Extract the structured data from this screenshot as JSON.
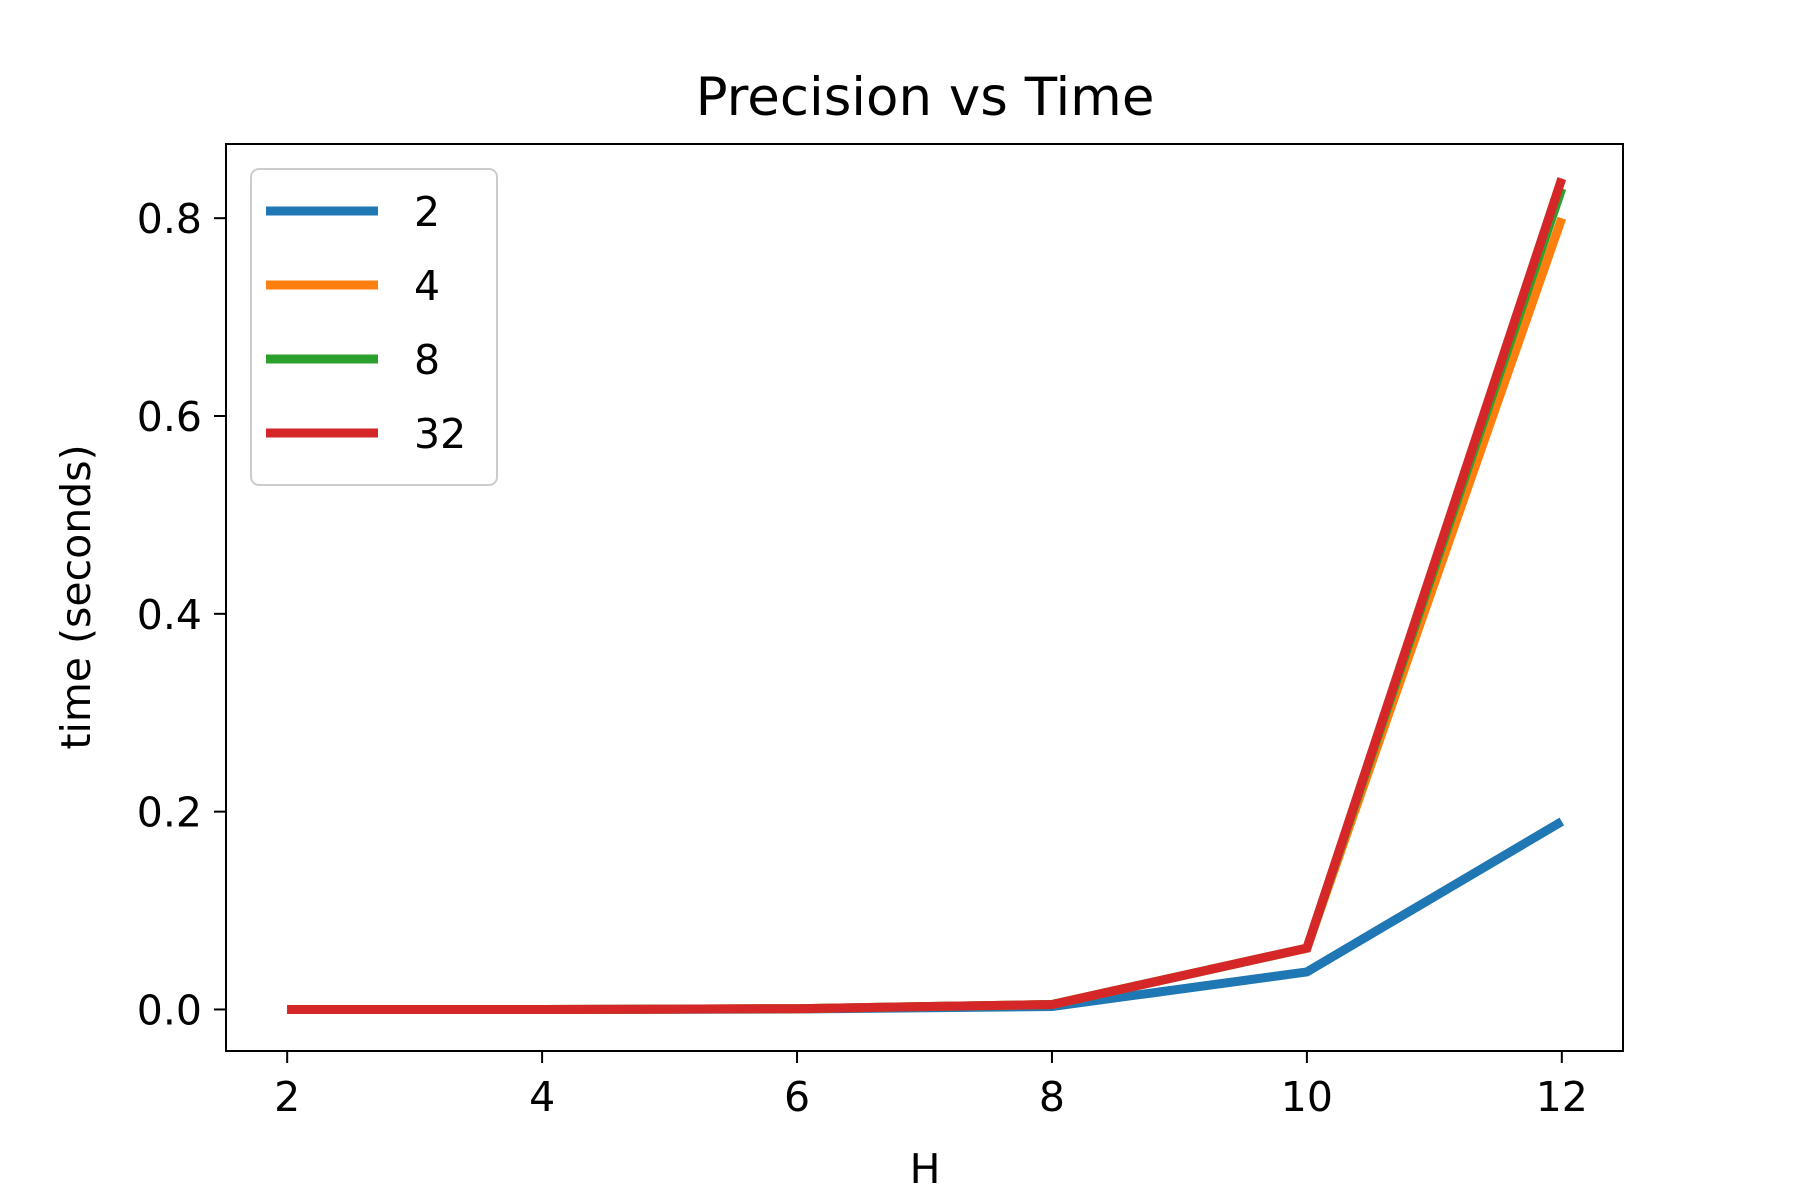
{
  "chart_data": {
    "type": "line",
    "title": "Precision vs Time",
    "xlabel": "H",
    "ylabel": "time (seconds)",
    "x": [
      2,
      4,
      6,
      8,
      10,
      12
    ],
    "xlim": [
      1.52,
      12.48
    ],
    "ylim": [
      -0.042,
      0.875
    ],
    "xticks": [
      2,
      4,
      6,
      8,
      10,
      12
    ],
    "yticks": [
      0.0,
      0.2,
      0.4,
      0.6,
      0.8
    ],
    "ytick_labels": [
      "0.0",
      "0.2",
      "0.4",
      "0.6",
      "0.8"
    ],
    "grid": false,
    "legend_position": "top-left",
    "series": [
      {
        "name": "2",
        "color": "#1f77b4",
        "values": [
          0.0,
          0.0,
          0.0005,
          0.003,
          0.038,
          0.19
        ]
      },
      {
        "name": "4",
        "color": "#ff7f0e",
        "values": [
          0.0,
          0.0,
          0.0008,
          0.005,
          0.062,
          0.8
        ]
      },
      {
        "name": "8",
        "color": "#2ca02c",
        "values": [
          0.0,
          0.0,
          0.0008,
          0.005,
          0.062,
          0.83
        ]
      },
      {
        "name": "32",
        "color": "#d62728",
        "values": [
          0.0,
          0.0,
          0.0008,
          0.005,
          0.062,
          0.84
        ]
      }
    ]
  }
}
